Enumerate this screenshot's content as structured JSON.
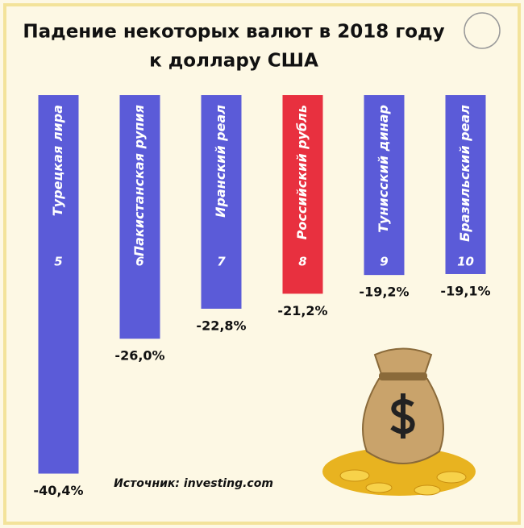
{
  "chart_data": {
    "type": "bar",
    "title": "Падение некоторых валют в 2018 году",
    "subtitle": "к доллару США",
    "categories": [
      "Турецкая лира",
      "Пакистанская рупия",
      "Иранский реал",
      "Российский рубль",
      "Тунисский динар",
      "Бразильский реал"
    ],
    "ranks": [
      5,
      6,
      7,
      8,
      9,
      10
    ],
    "values": [
      -40.4,
      -26.0,
      -22.8,
      -21.2,
      -19.2,
      -19.1
    ],
    "value_labels": [
      "-40,4%",
      "-26,0%",
      "-22,8%",
      "-21,2%",
      "-19,2%",
      "-19,1%"
    ],
    "colors": [
      "#5b5bd8",
      "#5b5bd8",
      "#5b5bd8",
      "#e8303f",
      "#5b5bd8",
      "#5b5bd8"
    ],
    "ylim": [
      0,
      -45
    ],
    "source": "Источник: investing.com"
  }
}
